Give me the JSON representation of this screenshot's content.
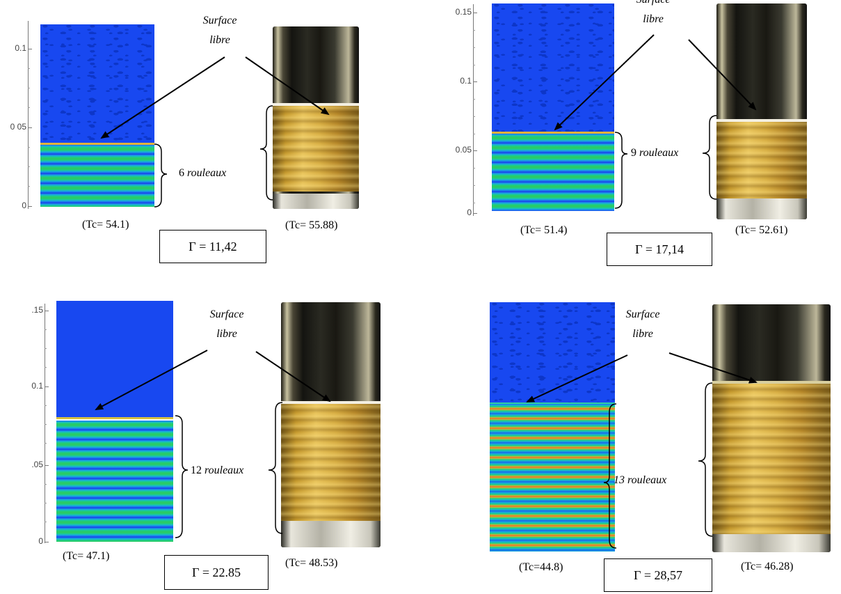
{
  "panels": [
    {
      "axis_ticks": [
        "0.1",
        "0 05",
        "0"
      ],
      "surface_label": "Surface libre",
      "rolls_count": "6",
      "rolls_word": "rouleaux",
      "rolls_italic_count": false,
      "sim_caption": "(Tc= 54.1)",
      "photo_caption": "(Tc= 55.88)",
      "gamma": "Γ = 11,42"
    },
    {
      "axis_ticks": [
        "0.15",
        "0.1",
        "0.05",
        "0"
      ],
      "surface_label": "Surface libre",
      "rolls_count": "9",
      "rolls_word": "rouleaux",
      "rolls_italic_count": false,
      "sim_caption": "(Tc= 51.4)",
      "photo_caption": "(Tc= 52.61)",
      "gamma": "Γ = 17,14"
    },
    {
      "axis_ticks": [
        ".15",
        "0.1",
        ".05",
        "0"
      ],
      "surface_label": "Surface libre",
      "rolls_count": "12",
      "rolls_word": "rouleaux",
      "rolls_italic_count": false,
      "sim_caption": "(Tc= 47.1)",
      "photo_caption": "(Tc= 48.53)",
      "gamma": "Γ = 22.85"
    },
    {
      "axis_ticks": [],
      "surface_label": "Surface libre",
      "rolls_count": "13",
      "rolls_word": "rouleaux",
      "rolls_italic_count": true,
      "sim_caption": "(Tc=44.8)",
      "photo_caption": "(Tc= 46.28)",
      "gamma": "Γ = 28,57"
    }
  ],
  "colors": {
    "air": "#1848f0",
    "interface": "#e0b43a",
    "rod_gold": "#d7ad42"
  }
}
